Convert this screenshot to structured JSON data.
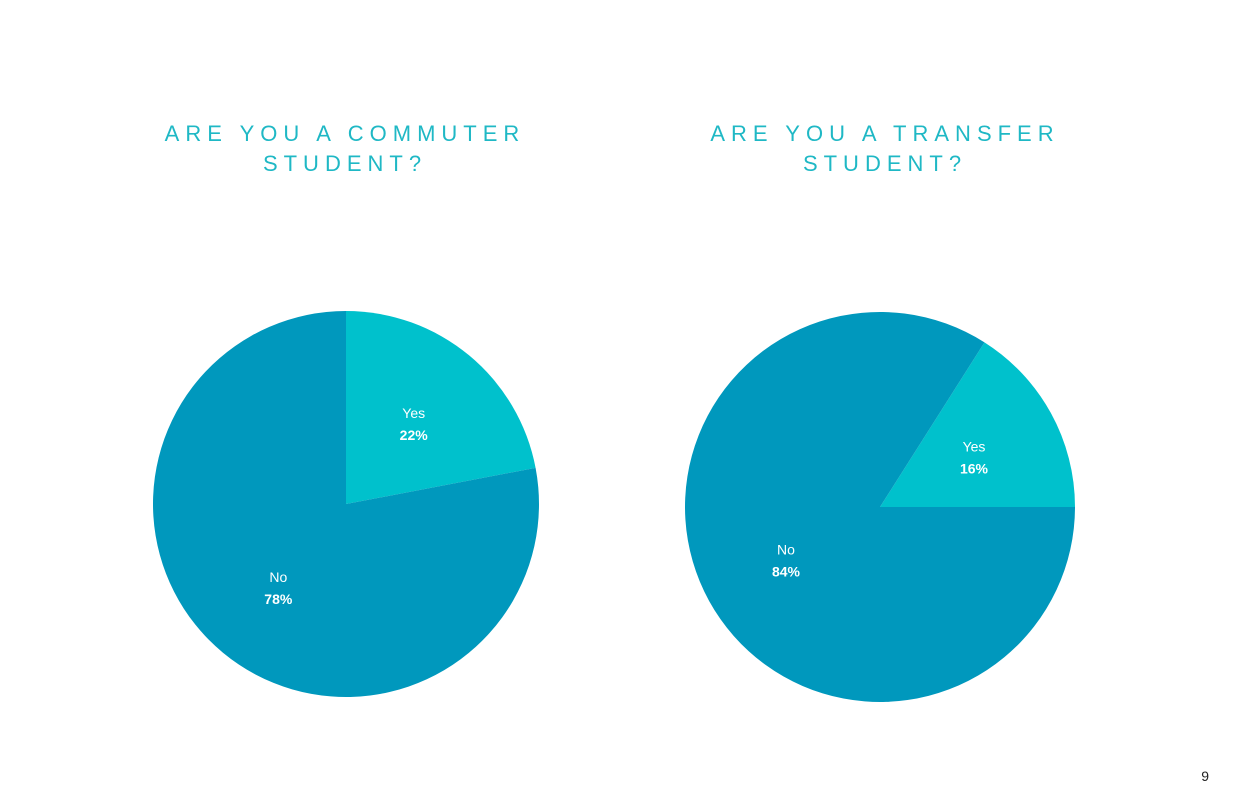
{
  "chart_data": [
    {
      "type": "pie",
      "title": "ARE YOU A COMMUTER STUDENT?",
      "slices": [
        {
          "label": "Yes",
          "value": 22,
          "value_label": "22%",
          "color": "#00c1cc"
        },
        {
          "label": "No",
          "value": 78,
          "value_label": "78%",
          "color": "#0098bd"
        }
      ]
    },
    {
      "type": "pie",
      "title": "ARE YOU A TRANSFER STUDENT?",
      "slices": [
        {
          "label": "Yes",
          "value": 16,
          "value_label": "16%",
          "color": "#00c1cc"
        },
        {
          "label": "No",
          "value": 84,
          "value_label": "84%",
          "color": "#0098bd"
        }
      ]
    }
  ],
  "page": {
    "number": "9"
  },
  "colors": {
    "title": "#1fb8c5",
    "yes": "#00c1cc",
    "no": "#0098bd"
  }
}
